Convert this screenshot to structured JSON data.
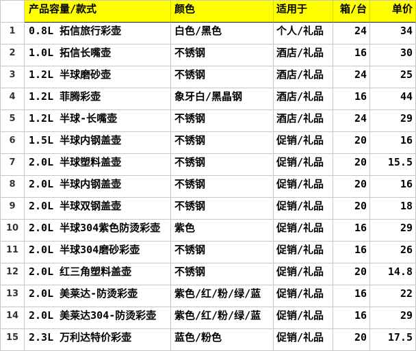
{
  "colors": {
    "header_bg": "#FFFF00",
    "header_underline": "#1A1A1A",
    "gridline": "#C6C6C6",
    "text": "#000000",
    "row_number_text": "#333333"
  },
  "table": {
    "columns": [
      {
        "label": "产品容量/款式"
      },
      {
        "label": "颜色"
      },
      {
        "label": "适用于"
      },
      {
        "label": "箱/台"
      },
      {
        "label": "单价"
      }
    ],
    "rows": [
      {
        "num": "1",
        "product": "0.8L 拓信旅行彩壶",
        "color": "白色/黑色",
        "use": "个人/礼品",
        "qty": "24",
        "price": "34"
      },
      {
        "num": "2",
        "product": "1.0L 拓信长嘴壶",
        "color": "不锈钢",
        "use": "酒店/礼品",
        "qty": "16",
        "price": "30"
      },
      {
        "num": "3",
        "product": "1.2L 半球磨砂壶",
        "color": "不锈钢",
        "use": "酒店/礼品",
        "qty": "24",
        "price": "25"
      },
      {
        "num": "4",
        "product": "1.2L 菲腾彩壶",
        "color": "象牙白/黑晶钢",
        "use": "酒店/礼品",
        "qty": "16",
        "price": "44"
      },
      {
        "num": "5",
        "product": "1.2L 半球-长嘴壶",
        "color": "不锈钢",
        "use": "酒店/礼品",
        "qty": "24",
        "price": "29"
      },
      {
        "num": "6",
        "product": "1.5L 半球内钢盖壶",
        "color": "不锈钢",
        "use": "促销/礼品",
        "qty": "20",
        "price": "16"
      },
      {
        "num": "7",
        "product": "2.0L 半球塑料盖壶",
        "color": "不锈钢",
        "use": "促销/礼品",
        "qty": "20",
        "price": "15.5"
      },
      {
        "num": "8",
        "product": "2.0L 半球内钢盖壶",
        "color": "不锈钢",
        "use": "促销/礼品",
        "qty": "20",
        "price": "16"
      },
      {
        "num": "9",
        "product": "2.0L 半球双钢盖壶",
        "color": "不锈钢",
        "use": "促销/礼品",
        "qty": "20",
        "price": "18"
      },
      {
        "num": "10",
        "product": "2.0L 半球304紫色防烫彩壶",
        "color": "紫色",
        "use": "促销/礼品",
        "qty": "16",
        "price": "29"
      },
      {
        "num": "11",
        "product": "2.0L 半球304磨砂彩壶",
        "color": "不锈钢",
        "use": "促销/礼品",
        "qty": "16",
        "price": "26"
      },
      {
        "num": "12",
        "product": "2.0L 红三角塑料盖壶",
        "color": "不锈钢",
        "use": "促销/礼品",
        "qty": "20",
        "price": "14.8"
      },
      {
        "num": "13",
        "product": "2.0L 美莱达-防烫彩壶",
        "color": "紫色/红/粉/绿/蓝",
        "use": "促销/礼品",
        "qty": "16",
        "price": "22"
      },
      {
        "num": "14",
        "product": "2.0L 美莱达304-防烫彩壶",
        "color": "紫色/红/粉/绿/蓝",
        "use": "促销/礼品",
        "qty": "16",
        "price": "29"
      },
      {
        "num": "15",
        "product": "2.3L 万利达特价彩壶",
        "color": "蓝色/粉色",
        "use": "促销/礼品",
        "qty": "20",
        "price": "17.5"
      }
    ]
  }
}
